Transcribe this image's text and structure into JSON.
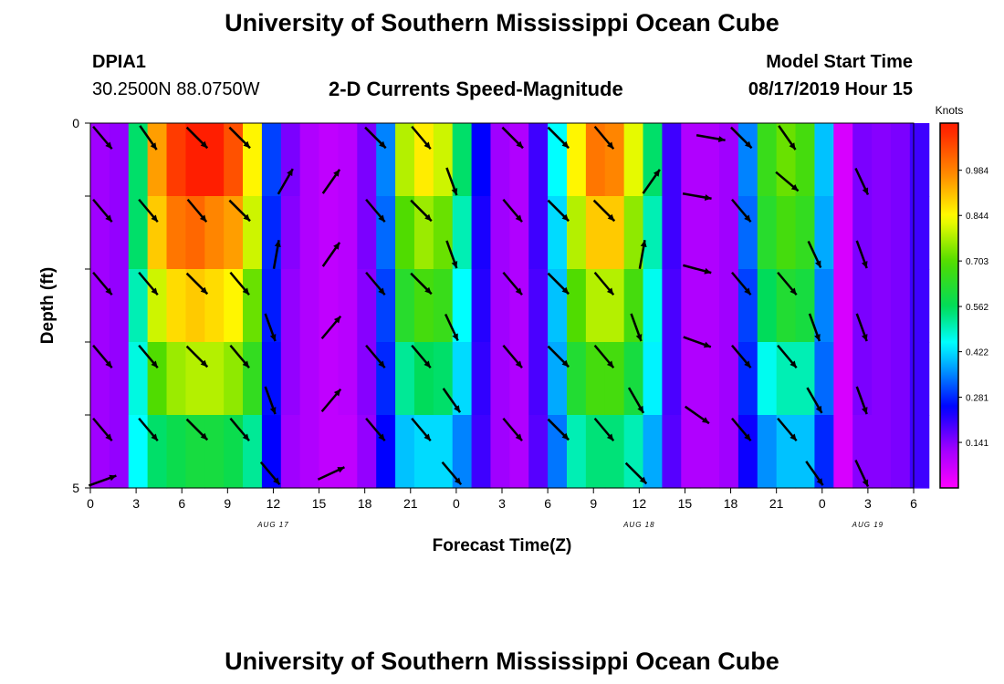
{
  "header": {
    "title_top": "University of Southern Mississippi Ocean Cube",
    "title_bottom": "University of Southern Mississippi Ocean Cube",
    "station_id": "DPIA1",
    "station_location": "30.2500N 88.0750W",
    "plot_title": "2-D Currents Speed-Magnitude",
    "model_label": "Model Start Time",
    "model_time": "08/17/2019 Hour 15"
  },
  "chart_data": {
    "type": "heatmap",
    "title": "2-D Currents Speed-Magnitude",
    "xlabel": "Forecast Time(Z)",
    "ylabel": "Depth (ft)",
    "x_hours": [
      0,
      1.25,
      2.5,
      3.75,
      5,
      6.25,
      7.5,
      8.75,
      10,
      11.25,
      12.5,
      13.75,
      15,
      16.25,
      17.5,
      18.75,
      20,
      21.25,
      22.5,
      23.75,
      25,
      26.25,
      27.5,
      28.75,
      30,
      31.25,
      32.5,
      33.75,
      35,
      36.25,
      37.5,
      38.75,
      40,
      41.25,
      42.5,
      43.75,
      45,
      46.25,
      47.5,
      48.75,
      50,
      51.25,
      52.5,
      53.75
    ],
    "xlim": [
      0,
      54
    ],
    "x_tick_labels": [
      "0",
      "3",
      "6",
      "9",
      "12",
      "15",
      "18",
      "21",
      "0",
      "3",
      "6",
      "9",
      "12",
      "15",
      "18",
      "21",
      "0",
      "3",
      "6"
    ],
    "date_labels": [
      {
        "label": "AUG 17",
        "hour": 12
      },
      {
        "label": "AUG 18",
        "hour": 36
      },
      {
        "label": "AUG 19",
        "hour": 51
      }
    ],
    "depth_rows_ft": [
      0.5,
      1.5,
      2.5,
      3.5,
      4.5
    ],
    "ylim": [
      0,
      5
    ],
    "y_tick_labels": [
      "0",
      "5"
    ],
    "colorbar_unit": "Knots",
    "colorbar_labels": [
      "0.984",
      "0.844",
      "0.703",
      "0.562",
      "0.422",
      "0.281",
      "0.141"
    ],
    "colorbar_range": [
      0,
      1.13
    ],
    "speed": [
      [
        0.12,
        0.13,
        0.55,
        0.95,
        1.08,
        1.13,
        1.13,
        1.05,
        0.85,
        0.3,
        0.15,
        0.1,
        0.08,
        0.09,
        0.15,
        0.35,
        0.78,
        0.86,
        0.8,
        0.55,
        0.25,
        0.12,
        0.1,
        0.2,
        0.45,
        0.85,
        1.0,
        0.98,
        0.82,
        0.55,
        0.2,
        0.1,
        0.1,
        0.12,
        0.35,
        0.66,
        0.72,
        0.68,
        0.4,
        0.05,
        0.15,
        0.14,
        0.15,
        0.2
      ],
      [
        0.12,
        0.13,
        0.55,
        0.9,
        1.0,
        1.02,
        0.98,
        0.95,
        0.8,
        0.28,
        0.14,
        0.1,
        0.08,
        0.09,
        0.15,
        0.33,
        0.7,
        0.76,
        0.72,
        0.5,
        0.23,
        0.12,
        0.1,
        0.2,
        0.42,
        0.78,
        0.9,
        0.9,
        0.75,
        0.5,
        0.2,
        0.1,
        0.1,
        0.12,
        0.33,
        0.63,
        0.68,
        0.65,
        0.38,
        0.05,
        0.15,
        0.14,
        0.15,
        0.2
      ],
      [
        0.12,
        0.13,
        0.5,
        0.8,
        0.88,
        0.9,
        0.88,
        0.85,
        0.72,
        0.27,
        0.13,
        0.1,
        0.08,
        0.09,
        0.14,
        0.3,
        0.63,
        0.68,
        0.66,
        0.45,
        0.22,
        0.12,
        0.1,
        0.19,
        0.4,
        0.7,
        0.78,
        0.78,
        0.68,
        0.46,
        0.19,
        0.1,
        0.1,
        0.12,
        0.3,
        0.56,
        0.62,
        0.6,
        0.35,
        0.05,
        0.15,
        0.14,
        0.15,
        0.2
      ],
      [
        0.12,
        0.13,
        0.47,
        0.7,
        0.76,
        0.78,
        0.78,
        0.75,
        0.65,
        0.26,
        0.13,
        0.1,
        0.08,
        0.09,
        0.14,
        0.28,
        0.52,
        0.56,
        0.55,
        0.42,
        0.21,
        0.12,
        0.1,
        0.19,
        0.38,
        0.62,
        0.68,
        0.68,
        0.6,
        0.44,
        0.19,
        0.1,
        0.1,
        0.12,
        0.28,
        0.46,
        0.5,
        0.5,
        0.33,
        0.05,
        0.15,
        0.14,
        0.15,
        0.2
      ],
      [
        0.12,
        0.13,
        0.45,
        0.55,
        0.58,
        0.6,
        0.6,
        0.58,
        0.52,
        0.25,
        0.12,
        0.1,
        0.08,
        0.08,
        0.13,
        0.25,
        0.4,
        0.42,
        0.42,
        0.35,
        0.2,
        0.12,
        0.1,
        0.18,
        0.34,
        0.5,
        0.54,
        0.54,
        0.5,
        0.38,
        0.18,
        0.1,
        0.1,
        0.12,
        0.24,
        0.36,
        0.4,
        0.4,
        0.28,
        0.05,
        0.14,
        0.14,
        0.15,
        0.2
      ]
    ],
    "current_vectors": [
      {
        "hour": 0.8,
        "depth_ft": 0.2,
        "dir_deg": 140,
        "speed": 0.5
      },
      {
        "hour": 3.8,
        "depth_ft": 0.2,
        "dir_deg": 145,
        "speed": 0.8
      },
      {
        "hour": 7.0,
        "depth_ft": 0.2,
        "dir_deg": 135,
        "speed": 1.1
      },
      {
        "hour": 9.8,
        "depth_ft": 0.2,
        "dir_deg": 135,
        "speed": 0.9
      },
      {
        "hour": 18.7,
        "depth_ft": 0.2,
        "dir_deg": 135,
        "speed": 0.8
      },
      {
        "hour": 21.7,
        "depth_ft": 0.2,
        "dir_deg": 140,
        "speed": 0.7
      },
      {
        "hour": 27.7,
        "depth_ft": 0.2,
        "dir_deg": 135,
        "speed": 0.8
      },
      {
        "hour": 30.7,
        "depth_ft": 0.2,
        "dir_deg": 135,
        "speed": 1.0
      },
      {
        "hour": 33.7,
        "depth_ft": 0.2,
        "dir_deg": 140,
        "speed": 0.7
      },
      {
        "hour": 40.7,
        "depth_ft": 0.2,
        "dir_deg": 100,
        "speed": 0.6
      },
      {
        "hour": 42.7,
        "depth_ft": 0.2,
        "dir_deg": 135,
        "speed": 0.7
      },
      {
        "hour": 45.7,
        "depth_ft": 0.2,
        "dir_deg": 145,
        "speed": 0.6
      },
      {
        "hour": 0.8,
        "depth_ft": 1.2,
        "dir_deg": 140,
        "speed": 0.5
      },
      {
        "hour": 3.8,
        "depth_ft": 1.2,
        "dir_deg": 140,
        "speed": 0.8
      },
      {
        "hour": 7.0,
        "depth_ft": 1.2,
        "dir_deg": 140,
        "speed": 1.0
      },
      {
        "hour": 9.8,
        "depth_ft": 1.2,
        "dir_deg": 135,
        "speed": 0.9
      },
      {
        "hour": 12.8,
        "depth_ft": 0.8,
        "dir_deg": 30,
        "speed": 0.4
      },
      {
        "hour": 15.8,
        "depth_ft": 0.8,
        "dir_deg": 35,
        "speed": 0.3
      },
      {
        "hour": 18.7,
        "depth_ft": 1.2,
        "dir_deg": 140,
        "speed": 0.7
      },
      {
        "hour": 21.7,
        "depth_ft": 1.2,
        "dir_deg": 135,
        "speed": 0.7
      },
      {
        "hour": 23.7,
        "depth_ft": 0.8,
        "dir_deg": 160,
        "speed": 0.1
      },
      {
        "hour": 27.7,
        "depth_ft": 1.2,
        "dir_deg": 140,
        "speed": 0.8
      },
      {
        "hour": 30.7,
        "depth_ft": 1.2,
        "dir_deg": 135,
        "speed": 0.9
      },
      {
        "hour": 33.7,
        "depth_ft": 1.2,
        "dir_deg": 135,
        "speed": 0.7
      },
      {
        "hour": 36.8,
        "depth_ft": 0.8,
        "dir_deg": 35,
        "speed": 0.2
      },
      {
        "hour": 39.8,
        "depth_ft": 1.0,
        "dir_deg": 100,
        "speed": 0.6
      },
      {
        "hour": 42.7,
        "depth_ft": 1.2,
        "dir_deg": 140,
        "speed": 0.7
      },
      {
        "hour": 45.7,
        "depth_ft": 0.8,
        "dir_deg": 130,
        "speed": 0.5
      },
      {
        "hour": 50.6,
        "depth_ft": 0.8,
        "dir_deg": 155,
        "speed": 0.1
      },
      {
        "hour": 0.8,
        "depth_ft": 2.2,
        "dir_deg": 140,
        "speed": 0.5
      },
      {
        "hour": 3.8,
        "depth_ft": 2.2,
        "dir_deg": 140,
        "speed": 0.8
      },
      {
        "hour": 7.0,
        "depth_ft": 2.2,
        "dir_deg": 135,
        "speed": 0.9
      },
      {
        "hour": 9.8,
        "depth_ft": 2.2,
        "dir_deg": 140,
        "speed": 0.8
      },
      {
        "hour": 12.2,
        "depth_ft": 1.8,
        "dir_deg": 10,
        "speed": 0.3
      },
      {
        "hour": 15.8,
        "depth_ft": 1.8,
        "dir_deg": 35,
        "speed": 0.3
      },
      {
        "hour": 18.7,
        "depth_ft": 2.2,
        "dir_deg": 140,
        "speed": 0.7
      },
      {
        "hour": 21.7,
        "depth_ft": 2.2,
        "dir_deg": 135,
        "speed": 0.7
      },
      {
        "hour": 23.7,
        "depth_ft": 1.8,
        "dir_deg": 160,
        "speed": 0.1
      },
      {
        "hour": 27.7,
        "depth_ft": 2.2,
        "dir_deg": 140,
        "speed": 0.7
      },
      {
        "hour": 30.7,
        "depth_ft": 2.2,
        "dir_deg": 135,
        "speed": 0.8
      },
      {
        "hour": 33.7,
        "depth_ft": 2.2,
        "dir_deg": 140,
        "speed": 0.7
      },
      {
        "hour": 36.2,
        "depth_ft": 1.8,
        "dir_deg": 10,
        "speed": 0.2
      },
      {
        "hour": 39.8,
        "depth_ft": 2.0,
        "dir_deg": 105,
        "speed": 0.6
      },
      {
        "hour": 42.7,
        "depth_ft": 2.2,
        "dir_deg": 140,
        "speed": 0.7
      },
      {
        "hour": 45.7,
        "depth_ft": 2.2,
        "dir_deg": 140,
        "speed": 0.5
      },
      {
        "hour": 47.5,
        "depth_ft": 1.8,
        "dir_deg": 155,
        "speed": 0.1
      },
      {
        "hour": 50.6,
        "depth_ft": 1.8,
        "dir_deg": 160,
        "speed": 0.1
      },
      {
        "hour": 0.8,
        "depth_ft": 3.2,
        "dir_deg": 140,
        "speed": 0.5
      },
      {
        "hour": 3.8,
        "depth_ft": 3.2,
        "dir_deg": 140,
        "speed": 0.7
      },
      {
        "hour": 7.0,
        "depth_ft": 3.2,
        "dir_deg": 135,
        "speed": 0.8
      },
      {
        "hour": 9.8,
        "depth_ft": 3.2,
        "dir_deg": 140,
        "speed": 0.7
      },
      {
        "hour": 11.8,
        "depth_ft": 2.8,
        "dir_deg": 160,
        "speed": 0.3
      },
      {
        "hour": 15.8,
        "depth_ft": 2.8,
        "dir_deg": 40,
        "speed": 0.3
      },
      {
        "hour": 18.7,
        "depth_ft": 3.2,
        "dir_deg": 140,
        "speed": 0.6
      },
      {
        "hour": 21.7,
        "depth_ft": 3.2,
        "dir_deg": 140,
        "speed": 0.6
      },
      {
        "hour": 23.7,
        "depth_ft": 2.8,
        "dir_deg": 155,
        "speed": 0.1
      },
      {
        "hour": 27.7,
        "depth_ft": 3.2,
        "dir_deg": 140,
        "speed": 0.7
      },
      {
        "hour": 30.7,
        "depth_ft": 3.2,
        "dir_deg": 135,
        "speed": 0.7
      },
      {
        "hour": 33.7,
        "depth_ft": 3.2,
        "dir_deg": 140,
        "speed": 0.6
      },
      {
        "hour": 35.8,
        "depth_ft": 2.8,
        "dir_deg": 160,
        "speed": 0.2
      },
      {
        "hour": 39.8,
        "depth_ft": 3.0,
        "dir_deg": 110,
        "speed": 0.5
      },
      {
        "hour": 42.7,
        "depth_ft": 3.2,
        "dir_deg": 140,
        "speed": 0.6
      },
      {
        "hour": 45.7,
        "depth_ft": 3.2,
        "dir_deg": 140,
        "speed": 0.4
      },
      {
        "hour": 47.5,
        "depth_ft": 2.8,
        "dir_deg": 160,
        "speed": 0.05
      },
      {
        "hour": 50.6,
        "depth_ft": 2.8,
        "dir_deg": 160,
        "speed": 0.1
      },
      {
        "hour": 0.8,
        "depth_ft": 4.2,
        "dir_deg": 140,
        "speed": 0.5
      },
      {
        "hour": 3.8,
        "depth_ft": 4.2,
        "dir_deg": 140,
        "speed": 0.6
      },
      {
        "hour": 7.0,
        "depth_ft": 4.2,
        "dir_deg": 135,
        "speed": 0.6
      },
      {
        "hour": 9.8,
        "depth_ft": 4.2,
        "dir_deg": 140,
        "speed": 0.5
      },
      {
        "hour": 11.8,
        "depth_ft": 3.8,
        "dir_deg": 160,
        "speed": 0.25
      },
      {
        "hour": 15.8,
        "depth_ft": 3.8,
        "dir_deg": 40,
        "speed": 0.25
      },
      {
        "hour": 18.7,
        "depth_ft": 4.2,
        "dir_deg": 140,
        "speed": 0.4
      },
      {
        "hour": 21.7,
        "depth_ft": 4.2,
        "dir_deg": 140,
        "speed": 0.4
      },
      {
        "hour": 23.7,
        "depth_ft": 3.8,
        "dir_deg": 145,
        "speed": 0.1
      },
      {
        "hour": 27.7,
        "depth_ft": 4.2,
        "dir_deg": 140,
        "speed": 0.5
      },
      {
        "hour": 30.7,
        "depth_ft": 4.2,
        "dir_deg": 135,
        "speed": 0.55
      },
      {
        "hour": 33.7,
        "depth_ft": 4.2,
        "dir_deg": 140,
        "speed": 0.5
      },
      {
        "hour": 35.8,
        "depth_ft": 3.8,
        "dir_deg": 150,
        "speed": 0.2
      },
      {
        "hour": 39.8,
        "depth_ft": 4.0,
        "dir_deg": 125,
        "speed": 0.4
      },
      {
        "hour": 42.7,
        "depth_ft": 4.2,
        "dir_deg": 140,
        "speed": 0.4
      },
      {
        "hour": 45.7,
        "depth_ft": 4.2,
        "dir_deg": 140,
        "speed": 0.35
      },
      {
        "hour": 47.5,
        "depth_ft": 3.8,
        "dir_deg": 150,
        "speed": 0.05
      },
      {
        "hour": 50.6,
        "depth_ft": 3.8,
        "dir_deg": 160,
        "speed": 0.1
      },
      {
        "hour": 0.8,
        "depth_ft": 4.9,
        "dir_deg": 70,
        "speed": 0.12
      },
      {
        "hour": 11.8,
        "depth_ft": 4.8,
        "dir_deg": 140,
        "speed": 0.2
      },
      {
        "hour": 15.8,
        "depth_ft": 4.8,
        "dir_deg": 65,
        "speed": 0.08
      },
      {
        "hour": 23.7,
        "depth_ft": 4.8,
        "dir_deg": 140,
        "speed": 0.1
      },
      {
        "hour": 35.8,
        "depth_ft": 4.8,
        "dir_deg": 135,
        "speed": 0.15
      },
      {
        "hour": 47.5,
        "depth_ft": 4.8,
        "dir_deg": 145,
        "speed": 0.05
      },
      {
        "hour": 50.6,
        "depth_ft": 4.8,
        "dir_deg": 155,
        "speed": 0.1
      }
    ]
  }
}
